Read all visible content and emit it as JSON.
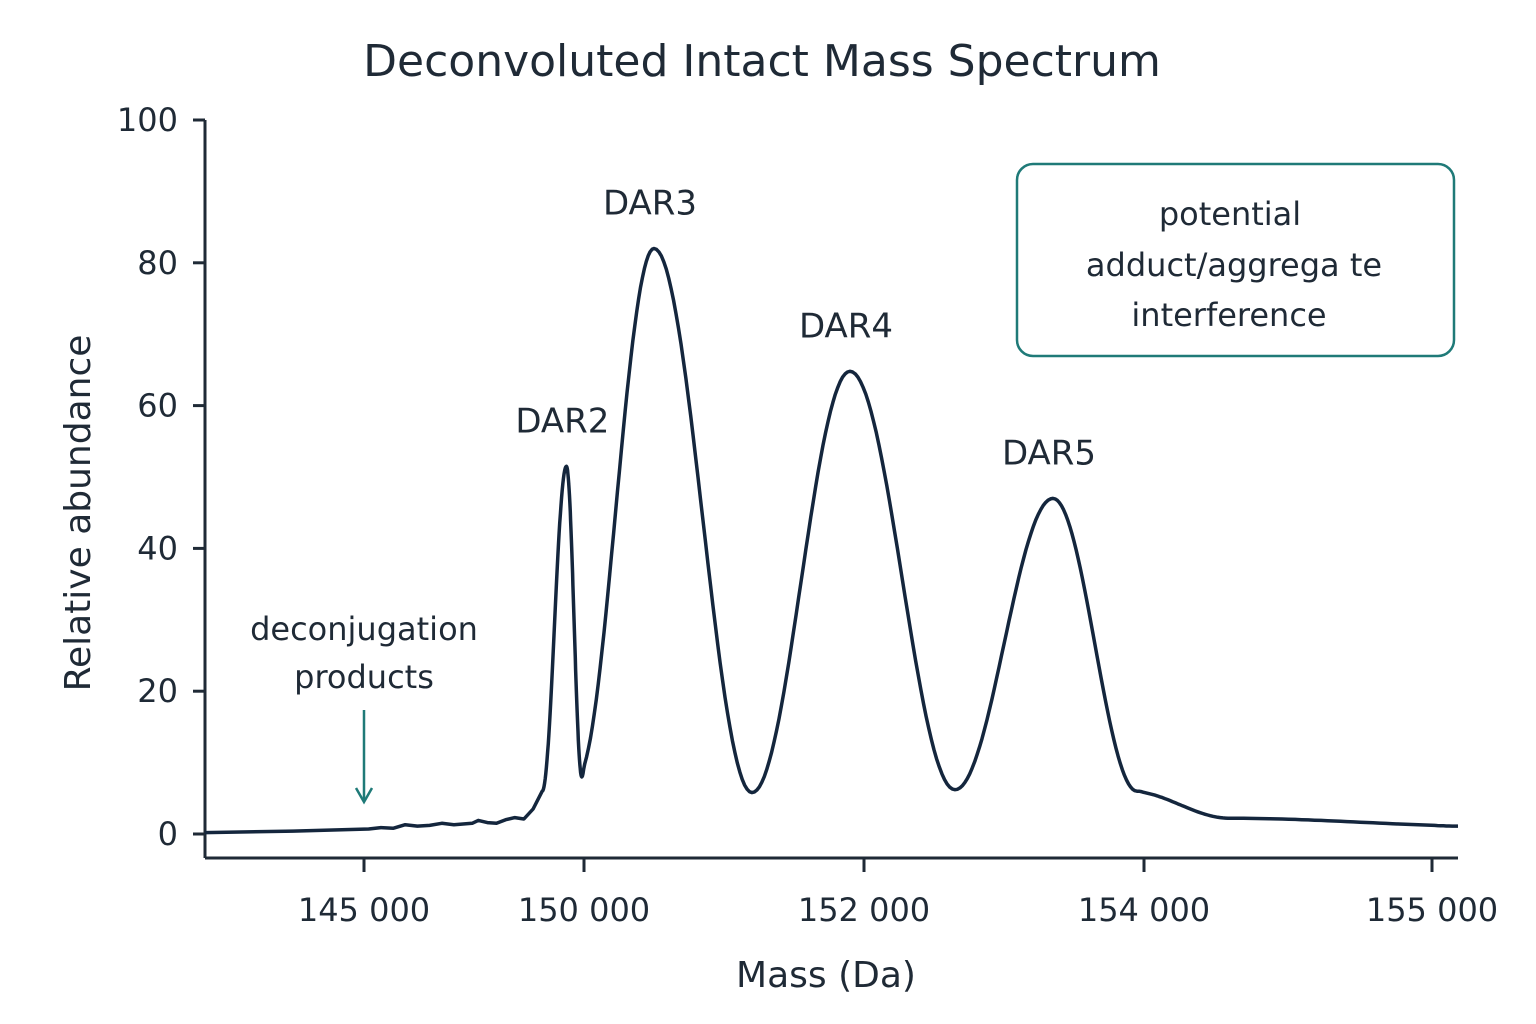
{
  "chart_data": {
    "type": "line",
    "title": "Deconvoluted Intact Mass Spectrum",
    "xlabel": "Mass (Da)",
    "ylabel": "Relative abundance",
    "ylim": [
      0,
      100
    ],
    "y_ticks": [
      0,
      20,
      40,
      60,
      80,
      100
    ],
    "x_ticks": [
      "145 000",
      "150 000",
      "152 000",
      "154 000",
      "155 000"
    ],
    "grid": false,
    "series": [
      {
        "color": "#14263d",
        "points": [
          [
            0.0,
            0.2
          ],
          [
            0.04,
            0.4
          ],
          [
            0.08,
            0.7
          ],
          [
            0.1,
            0.9
          ],
          [
            0.12,
            0.8
          ],
          [
            0.14,
            1.3
          ],
          [
            0.16,
            1.1
          ],
          [
            0.18,
            1.2
          ],
          [
            0.2,
            1.5
          ],
          [
            0.22,
            1.3
          ],
          [
            0.235,
            1.4
          ],
          [
            0.25,
            1.5
          ],
          [
            0.26,
            1.9
          ],
          [
            0.275,
            1.6
          ],
          [
            0.29,
            1.5
          ],
          [
            0.305,
            2.0
          ],
          [
            0.32,
            2.3
          ],
          [
            0.335,
            2.1
          ],
          [
            0.35,
            3.5
          ],
          [
            0.365,
            6.0
          ]
        ],
        "peaks": [
          {
            "label": "DAR2",
            "mass": 149600,
            "height": 51.5
          },
          {
            "label": "DAR3",
            "mass": 150500,
            "height": 82
          },
          {
            "label": "DAR4",
            "mass": 151900,
            "height": 64.8
          },
          {
            "label": "DAR5",
            "mass": 153350,
            "height": 47
          }
        ],
        "valleys": [
          {
            "mass": 149950,
            "height": 8
          },
          {
            "mass": 151200,
            "height": 5.8
          },
          {
            "mass": 152650,
            "height": 6.2
          }
        ],
        "tail_end_height": 1.1
      }
    ],
    "annotations": [
      {
        "id": "deconjugation",
        "lines": [
          "deconjugation",
          "products"
        ]
      },
      {
        "id": "interference",
        "lines": [
          "potential",
          "adduct/aggrega te",
          "interference"
        ]
      }
    ],
    "colors": {
      "line": "#14263d",
      "accent": "#1f7a78",
      "text": "#1f2a36"
    }
  }
}
